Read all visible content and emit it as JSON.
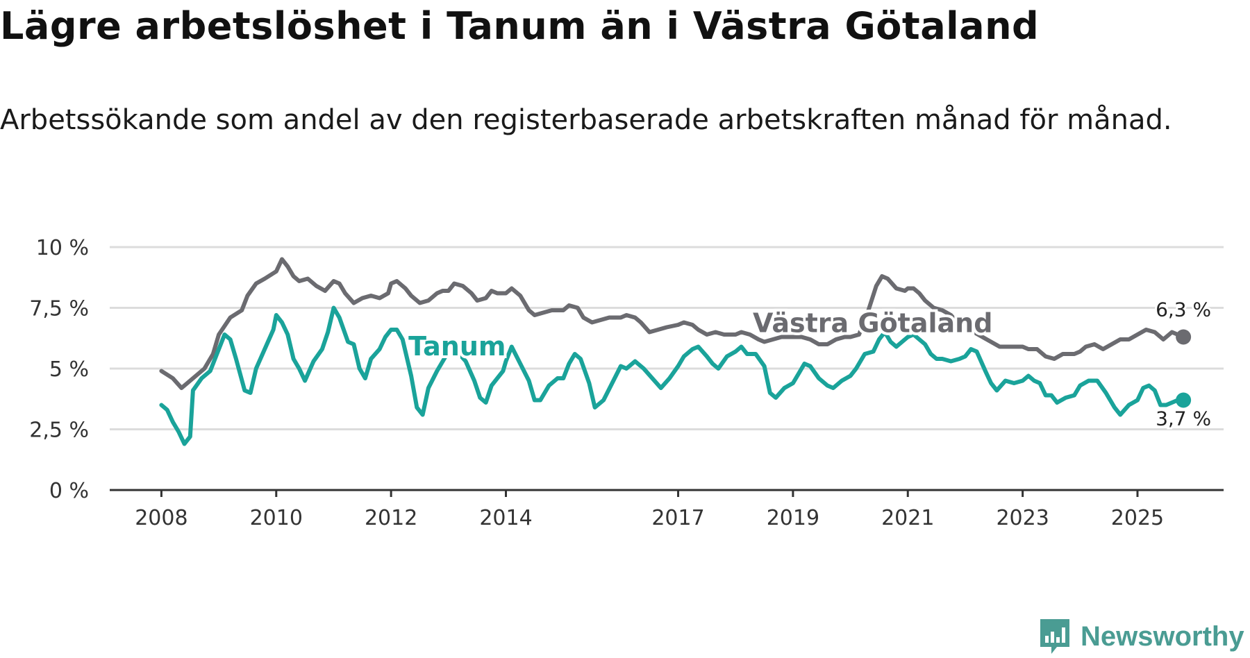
{
  "title": "Lägre arbetslöshet i Tanum än i Västra Götaland",
  "subtitle": "Arbetssökande som andel av den registerbaserade arbetskraften månad för månad.",
  "brand": "Newsworthy",
  "colors": {
    "tanum": "#1aa39a",
    "vg": "#6b6b70",
    "grid": "#dcdcdc",
    "axis": "#333333",
    "brand": "#4a9c93"
  },
  "chart_data": {
    "type": "line",
    "title": "Lägre arbetslöshet i Tanum än i Västra Götaland",
    "xlabel": "",
    "ylabel": "",
    "ylim": [
      0,
      10
    ],
    "xlim": [
      2007.1,
      2026.5
    ],
    "y_ticks": [
      0,
      2.5,
      5,
      7.5,
      10
    ],
    "y_tick_labels": [
      "0 %",
      "2,5 %",
      "5 %",
      "7,5 %",
      "10 %"
    ],
    "x_ticks": [
      2008,
      2010,
      2012,
      2014,
      2017,
      2019,
      2021,
      2023,
      2025
    ],
    "x_tick_labels": [
      "2008",
      "2010",
      "2012",
      "2014",
      "2017",
      "2019",
      "2021",
      "2023",
      "2025"
    ],
    "grid": true,
    "series": [
      {
        "name": "Västra Götaland",
        "label": "Västra Götaland",
        "end_label": "6,3 %",
        "points": [
          [
            2008.0,
            4.9
          ],
          [
            2008.2,
            4.6
          ],
          [
            2008.35,
            4.2
          ],
          [
            2008.5,
            4.5
          ],
          [
            2008.75,
            5.0
          ],
          [
            2008.9,
            5.6
          ],
          [
            2009.0,
            6.4
          ],
          [
            2009.2,
            7.1
          ],
          [
            2009.4,
            7.4
          ],
          [
            2009.5,
            8.0
          ],
          [
            2009.65,
            8.5
          ],
          [
            2009.8,
            8.7
          ],
          [
            2010.0,
            9.0
          ],
          [
            2010.1,
            9.5
          ],
          [
            2010.2,
            9.2
          ],
          [
            2010.3,
            8.8
          ],
          [
            2010.4,
            8.6
          ],
          [
            2010.55,
            8.7
          ],
          [
            2010.7,
            8.4
          ],
          [
            2010.85,
            8.2
          ],
          [
            2011.0,
            8.6
          ],
          [
            2011.1,
            8.5
          ],
          [
            2011.2,
            8.1
          ],
          [
            2011.35,
            7.7
          ],
          [
            2011.5,
            7.9
          ],
          [
            2011.65,
            8.0
          ],
          [
            2011.8,
            7.9
          ],
          [
            2011.95,
            8.1
          ],
          [
            2012.0,
            8.5
          ],
          [
            2012.1,
            8.6
          ],
          [
            2012.25,
            8.3
          ],
          [
            2012.35,
            8.0
          ],
          [
            2012.5,
            7.7
          ],
          [
            2012.65,
            7.8
          ],
          [
            2012.8,
            8.1
          ],
          [
            2012.9,
            8.2
          ],
          [
            2013.0,
            8.2
          ],
          [
            2013.1,
            8.5
          ],
          [
            2013.25,
            8.4
          ],
          [
            2013.4,
            8.1
          ],
          [
            2013.5,
            7.8
          ],
          [
            2013.65,
            7.9
          ],
          [
            2013.75,
            8.2
          ],
          [
            2013.85,
            8.1
          ],
          [
            2014.0,
            8.1
          ],
          [
            2014.1,
            8.3
          ],
          [
            2014.25,
            8.0
          ],
          [
            2014.4,
            7.4
          ],
          [
            2014.5,
            7.2
          ],
          [
            2014.65,
            7.3
          ],
          [
            2014.8,
            7.4
          ],
          [
            2015.0,
            7.4
          ],
          [
            2015.1,
            7.6
          ],
          [
            2015.25,
            7.5
          ],
          [
            2015.35,
            7.1
          ],
          [
            2015.5,
            6.9
          ],
          [
            2015.65,
            7.0
          ],
          [
            2015.8,
            7.1
          ],
          [
            2016.0,
            7.1
          ],
          [
            2016.1,
            7.2
          ],
          [
            2016.25,
            7.1
          ],
          [
            2016.35,
            6.9
          ],
          [
            2016.5,
            6.5
          ],
          [
            2016.65,
            6.6
          ],
          [
            2016.8,
            6.7
          ],
          [
            2017.0,
            6.8
          ],
          [
            2017.1,
            6.9
          ],
          [
            2017.25,
            6.8
          ],
          [
            2017.35,
            6.6
          ],
          [
            2017.5,
            6.4
          ],
          [
            2017.65,
            6.5
          ],
          [
            2017.8,
            6.4
          ],
          [
            2018.0,
            6.4
          ],
          [
            2018.1,
            6.5
          ],
          [
            2018.25,
            6.4
          ],
          [
            2018.4,
            6.2
          ],
          [
            2018.5,
            6.1
          ],
          [
            2018.65,
            6.2
          ],
          [
            2018.8,
            6.3
          ],
          [
            2019.0,
            6.3
          ],
          [
            2019.15,
            6.3
          ],
          [
            2019.3,
            6.2
          ],
          [
            2019.45,
            6.0
          ],
          [
            2019.6,
            6.0
          ],
          [
            2019.75,
            6.2
          ],
          [
            2019.9,
            6.3
          ],
          [
            2020.0,
            6.3
          ],
          [
            2020.15,
            6.4
          ],
          [
            2020.3,
            7.3
          ],
          [
            2020.45,
            8.4
          ],
          [
            2020.55,
            8.8
          ],
          [
            2020.65,
            8.7
          ],
          [
            2020.8,
            8.3
          ],
          [
            2020.95,
            8.2
          ],
          [
            2021.0,
            8.3
          ],
          [
            2021.1,
            8.3
          ],
          [
            2021.2,
            8.1
          ],
          [
            2021.3,
            7.8
          ],
          [
            2021.45,
            7.5
          ],
          [
            2021.6,
            7.4
          ],
          [
            2021.75,
            7.2
          ],
          [
            2021.9,
            6.8
          ],
          [
            2022.0,
            6.7
          ],
          [
            2022.15,
            6.5
          ],
          [
            2022.3,
            6.3
          ],
          [
            2022.45,
            6.1
          ],
          [
            2022.6,
            5.9
          ],
          [
            2022.8,
            5.9
          ],
          [
            2023.0,
            5.9
          ],
          [
            2023.1,
            5.8
          ],
          [
            2023.25,
            5.8
          ],
          [
            2023.4,
            5.5
          ],
          [
            2023.55,
            5.4
          ],
          [
            2023.7,
            5.6
          ],
          [
            2023.9,
            5.6
          ],
          [
            2024.0,
            5.7
          ],
          [
            2024.1,
            5.9
          ],
          [
            2024.25,
            6.0
          ],
          [
            2024.4,
            5.8
          ],
          [
            2024.55,
            6.0
          ],
          [
            2024.7,
            6.2
          ],
          [
            2024.85,
            6.2
          ],
          [
            2025.0,
            6.4
          ],
          [
            2025.15,
            6.6
          ],
          [
            2025.3,
            6.5
          ],
          [
            2025.45,
            6.2
          ],
          [
            2025.6,
            6.5
          ],
          [
            2025.7,
            6.4
          ],
          [
            2025.8,
            6.3
          ]
        ]
      },
      {
        "name": "Tanum",
        "label": "Tanum",
        "end_label": "3,7 %",
        "points": [
          [
            2008.0,
            3.5
          ],
          [
            2008.1,
            3.3
          ],
          [
            2008.2,
            2.8
          ],
          [
            2008.3,
            2.4
          ],
          [
            2008.4,
            1.9
          ],
          [
            2008.5,
            2.2
          ],
          [
            2008.55,
            4.1
          ],
          [
            2008.7,
            4.6
          ],
          [
            2008.85,
            4.9
          ],
          [
            2009.0,
            5.8
          ],
          [
            2009.1,
            6.4
          ],
          [
            2009.2,
            6.2
          ],
          [
            2009.3,
            5.4
          ],
          [
            2009.45,
            4.1
          ],
          [
            2009.55,
            4.0
          ],
          [
            2009.65,
            5.0
          ],
          [
            2009.8,
            5.8
          ],
          [
            2009.95,
            6.6
          ],
          [
            2010.0,
            7.2
          ],
          [
            2010.1,
            6.9
          ],
          [
            2010.2,
            6.4
          ],
          [
            2010.3,
            5.4
          ],
          [
            2010.4,
            5.0
          ],
          [
            2010.5,
            4.5
          ],
          [
            2010.65,
            5.3
          ],
          [
            2010.8,
            5.8
          ],
          [
            2010.9,
            6.5
          ],
          [
            2011.0,
            7.5
          ],
          [
            2011.1,
            7.1
          ],
          [
            2011.25,
            6.1
          ],
          [
            2011.35,
            6.0
          ],
          [
            2011.45,
            5.0
          ],
          [
            2011.55,
            4.6
          ],
          [
            2011.65,
            5.4
          ],
          [
            2011.8,
            5.8
          ],
          [
            2011.9,
            6.3
          ],
          [
            2012.0,
            6.6
          ],
          [
            2012.1,
            6.6
          ],
          [
            2012.2,
            6.2
          ],
          [
            2012.35,
            4.7
          ],
          [
            2012.45,
            3.4
          ],
          [
            2012.55,
            3.1
          ],
          [
            2012.65,
            4.2
          ],
          [
            2012.8,
            4.9
          ],
          [
            2012.95,
            5.5
          ],
          [
            2013.0,
            5.6
          ],
          [
            2013.15,
            5.7
          ],
          [
            2013.3,
            5.3
          ],
          [
            2013.45,
            4.5
          ],
          [
            2013.55,
            3.8
          ],
          [
            2013.65,
            3.6
          ],
          [
            2013.75,
            4.3
          ],
          [
            2013.85,
            4.6
          ],
          [
            2013.95,
            4.9
          ],
          [
            2014.0,
            5.3
          ],
          [
            2014.1,
            5.9
          ],
          [
            2014.25,
            5.2
          ],
          [
            2014.4,
            4.5
          ],
          [
            2014.5,
            3.7
          ],
          [
            2014.6,
            3.7
          ],
          [
            2014.75,
            4.3
          ],
          [
            2014.9,
            4.6
          ],
          [
            2015.0,
            4.6
          ],
          [
            2015.1,
            5.2
          ],
          [
            2015.2,
            5.6
          ],
          [
            2015.3,
            5.4
          ],
          [
            2015.45,
            4.4
          ],
          [
            2015.55,
            3.4
          ],
          [
            2015.7,
            3.7
          ],
          [
            2015.85,
            4.4
          ],
          [
            2016.0,
            5.1
          ],
          [
            2016.1,
            5.0
          ],
          [
            2016.25,
            5.3
          ],
          [
            2016.4,
            5.0
          ],
          [
            2016.55,
            4.6
          ],
          [
            2016.7,
            4.2
          ],
          [
            2016.85,
            4.6
          ],
          [
            2017.0,
            5.1
          ],
          [
            2017.1,
            5.5
          ],
          [
            2017.25,
            5.8
          ],
          [
            2017.35,
            5.9
          ],
          [
            2017.5,
            5.5
          ],
          [
            2017.6,
            5.2
          ],
          [
            2017.7,
            5.0
          ],
          [
            2017.85,
            5.5
          ],
          [
            2018.0,
            5.7
          ],
          [
            2018.1,
            5.9
          ],
          [
            2018.2,
            5.6
          ],
          [
            2018.35,
            5.6
          ],
          [
            2018.5,
            5.1
          ],
          [
            2018.6,
            4.0
          ],
          [
            2018.7,
            3.8
          ],
          [
            2018.85,
            4.2
          ],
          [
            2019.0,
            4.4
          ],
          [
            2019.1,
            4.8
          ],
          [
            2019.2,
            5.2
          ],
          [
            2019.3,
            5.1
          ],
          [
            2019.45,
            4.6
          ],
          [
            2019.6,
            4.3
          ],
          [
            2019.7,
            4.2
          ],
          [
            2019.85,
            4.5
          ],
          [
            2020.0,
            4.7
          ],
          [
            2020.1,
            5.0
          ],
          [
            2020.25,
            5.6
          ],
          [
            2020.4,
            5.7
          ],
          [
            2020.5,
            6.2
          ],
          [
            2020.6,
            6.5
          ],
          [
            2020.7,
            6.1
          ],
          [
            2020.8,
            5.9
          ],
          [
            2020.95,
            6.2
          ],
          [
            2021.0,
            6.3
          ],
          [
            2021.1,
            6.4
          ],
          [
            2021.2,
            6.2
          ],
          [
            2021.3,
            6.0
          ],
          [
            2021.4,
            5.6
          ],
          [
            2021.5,
            5.4
          ],
          [
            2021.6,
            5.4
          ],
          [
            2021.75,
            5.3
          ],
          [
            2021.9,
            5.4
          ],
          [
            2022.0,
            5.5
          ],
          [
            2022.1,
            5.8
          ],
          [
            2022.2,
            5.7
          ],
          [
            2022.35,
            4.9
          ],
          [
            2022.45,
            4.4
          ],
          [
            2022.55,
            4.1
          ],
          [
            2022.7,
            4.5
          ],
          [
            2022.85,
            4.4
          ],
          [
            2023.0,
            4.5
          ],
          [
            2023.1,
            4.7
          ],
          [
            2023.2,
            4.5
          ],
          [
            2023.3,
            4.4
          ],
          [
            2023.4,
            3.9
          ],
          [
            2023.5,
            3.9
          ],
          [
            2023.6,
            3.6
          ],
          [
            2023.75,
            3.8
          ],
          [
            2023.9,
            3.9
          ],
          [
            2024.0,
            4.3
          ],
          [
            2024.15,
            4.5
          ],
          [
            2024.3,
            4.5
          ],
          [
            2024.45,
            4.0
          ],
          [
            2024.6,
            3.4
          ],
          [
            2024.7,
            3.1
          ],
          [
            2024.85,
            3.5
          ],
          [
            2025.0,
            3.7
          ],
          [
            2025.1,
            4.2
          ],
          [
            2025.2,
            4.3
          ],
          [
            2025.3,
            4.1
          ],
          [
            2025.4,
            3.5
          ],
          [
            2025.5,
            3.5
          ],
          [
            2025.6,
            3.6
          ],
          [
            2025.7,
            3.7
          ],
          [
            2025.8,
            3.7
          ]
        ]
      }
    ]
  }
}
